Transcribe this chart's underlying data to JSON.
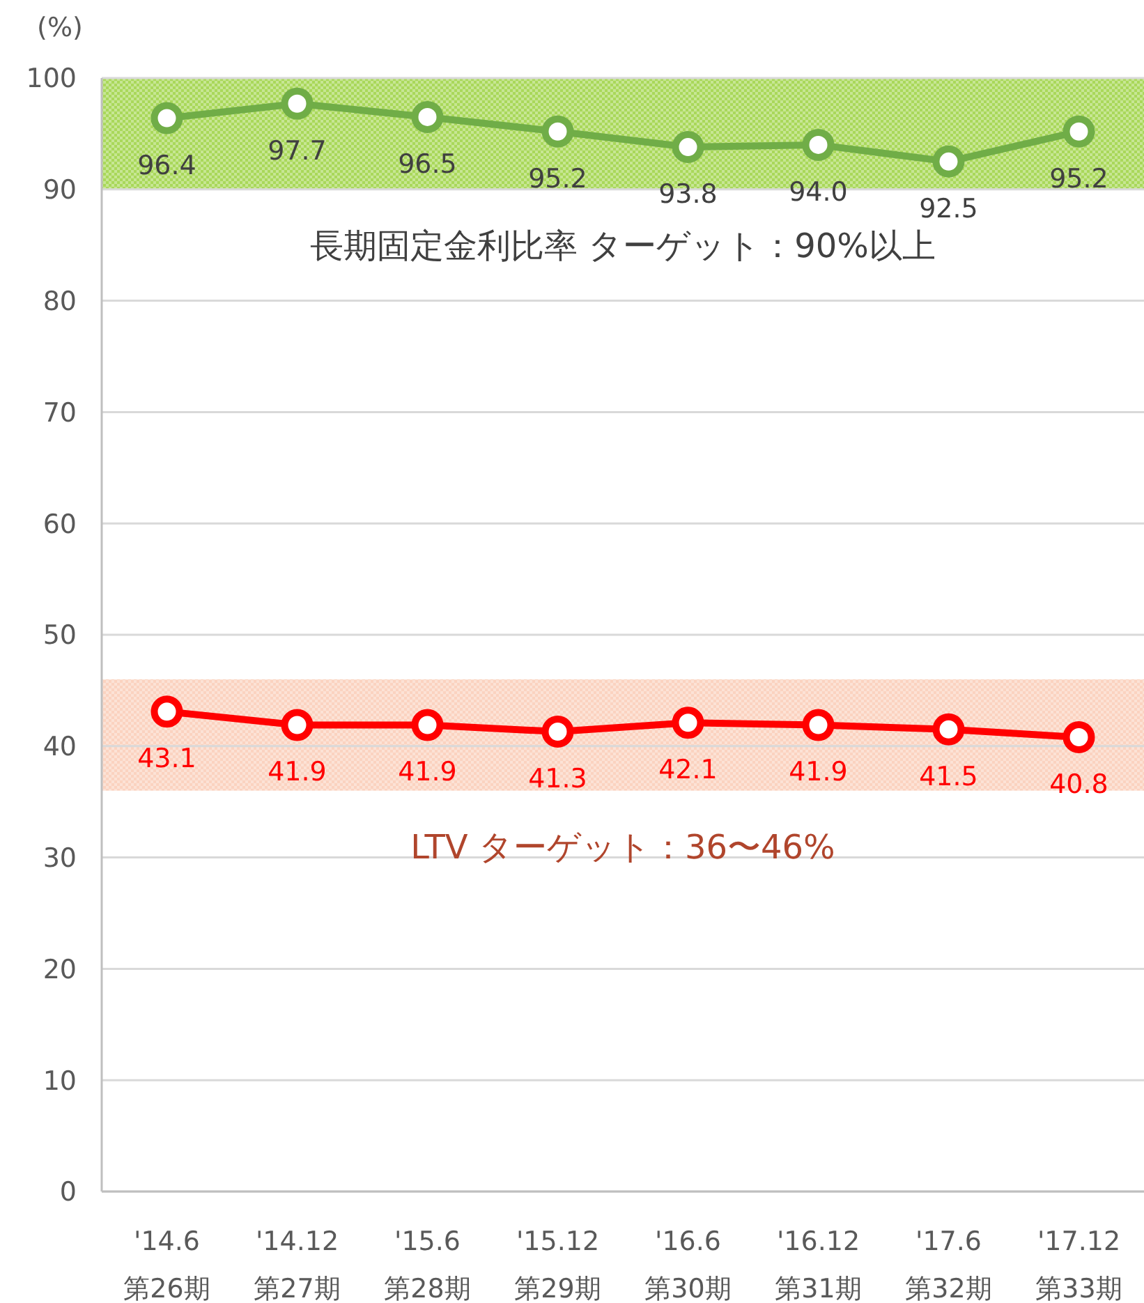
{
  "chart_data": {
    "type": "line",
    "ylabel": "(%)",
    "categories": [
      "'14.6\n第26期",
      "'14.12\n第27期",
      "'15.6\n第28期",
      "'15.12\n第29期",
      "'16.6\n第30期",
      "'16.12\n第31期",
      "'17.6\n第32期",
      "'17.12\n第33期"
    ],
    "series": [
      {
        "color": "#70ad47",
        "values": [
          96.4,
          97.7,
          96.5,
          95.2,
          93.8,
          94.0,
          92.5,
          95.2
        ],
        "value_labels": [
          "96.4",
          "97.7",
          "96.5",
          "95.2",
          "93.8",
          "94.0",
          "92.5",
          "95.2"
        ]
      },
      {
        "color": "#ff0000",
        "values": [
          43.1,
          41.9,
          41.9,
          41.3,
          42.1,
          41.9,
          41.5,
          40.8
        ],
        "value_labels": [
          "43.1",
          "41.9",
          "41.9",
          "41.3",
          "42.1",
          "41.9",
          "41.5",
          "40.8"
        ]
      }
    ],
    "bands": [
      {
        "axis": "y",
        "from": 90,
        "to": 100,
        "label": "長期固定金利比率  ターゲット：90%以上",
        "color": "#a9d85a"
      },
      {
        "axis": "y",
        "from": 36,
        "to": 46,
        "label": "LTV  ターゲット：36〜46%",
        "color": "#fbd3c0"
      }
    ],
    "ylim": [
      0,
      100
    ],
    "yticks": [
      0,
      10,
      20,
      30,
      40,
      50,
      60,
      70,
      80,
      90,
      100
    ],
    "grid": "y",
    "marker": "circle",
    "line_style": "solid"
  }
}
